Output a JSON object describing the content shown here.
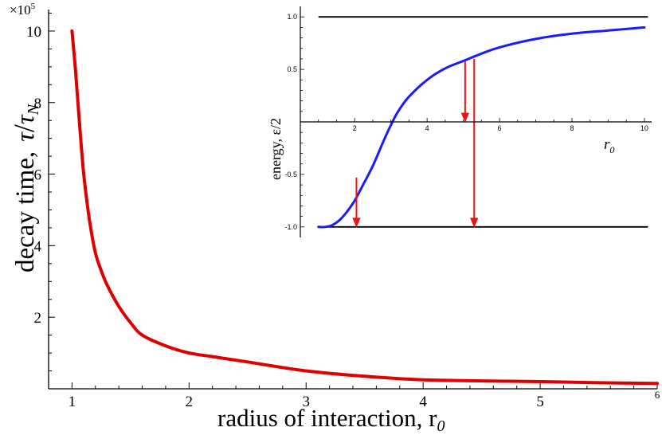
{
  "chart_data": [
    {
      "type": "line",
      "title": "",
      "xlabel": "radius of interaction, r",
      "xlabel_sub": "0",
      "ylabel": "decay time,",
      "ylabel_tau": "τ",
      "ylabel_slash": "/",
      "ylabel_tauN": "τ",
      "ylabel_tauN_sub": "N",
      "y_multiplier": "×10",
      "y_multiplier_exp": "5",
      "xlim": [
        0.8,
        6
      ],
      "ylim": [
        0,
        10.6
      ],
      "x_ticks": [
        1,
        2,
        3,
        4,
        5,
        6
      ],
      "x_tick_labels": [
        "1",
        "2",
        "3",
        "4",
        "5",
        "6"
      ],
      "y_ticks": [
        2,
        4,
        6,
        8,
        10
      ],
      "y_tick_labels": [
        "2",
        "4",
        "6",
        "8",
        "10"
      ],
      "color": "#dd0000",
      "series": [
        {
          "x": [
            1.0,
            1.03,
            1.06,
            1.1,
            1.15,
            1.2,
            1.25,
            1.3,
            1.4,
            1.5,
            1.6,
            1.8,
            2.0,
            2.2,
            2.5,
            3.0,
            3.5,
            4.0,
            4.5,
            5.0,
            5.5,
            6.0
          ],
          "y": [
            10.0,
            8.9,
            7.6,
            6.0,
            4.7,
            3.8,
            3.3,
            2.9,
            2.3,
            1.85,
            1.5,
            1.2,
            1.0,
            0.9,
            0.75,
            0.5,
            0.35,
            0.25,
            0.22,
            0.2,
            0.17,
            0.15
          ]
        }
      ]
    },
    {
      "type": "line",
      "title": "",
      "xlabel": "r",
      "xlabel_sub": "0",
      "ylabel": "energy, ε/2",
      "xlim": [
        0.5,
        10.2
      ],
      "ylim": [
        -1.1,
        1.1
      ],
      "x_ticks": [
        2,
        4,
        6,
        8,
        10
      ],
      "x_tick_labels": [
        "2",
        "4",
        "6",
        "8",
        "10"
      ],
      "y_ticks": [
        -1.0,
        -0.5,
        0.5,
        1.0
      ],
      "y_tick_labels": [
        "-1.0",
        "-0.5",
        "0.5",
        "1.0"
      ],
      "reference_lines": [
        1.0,
        -1.0
      ],
      "curve_color": "#1a1aff",
      "arrow_color": "#ee1111",
      "series": [
        {
          "x": [
            1.0,
            1.2,
            1.4,
            1.6,
            1.8,
            2.0,
            2.2,
            2.5,
            2.8,
            3.0,
            3.2,
            3.5,
            4.0,
            4.5,
            5.0,
            5.5,
            6.0,
            7.0,
            8.0,
            9.0,
            10.0
          ],
          "y": [
            -1.0,
            -1.0,
            -0.98,
            -0.93,
            -0.85,
            -0.75,
            -0.62,
            -0.42,
            -0.18,
            -0.03,
            0.1,
            0.24,
            0.4,
            0.51,
            0.58,
            0.65,
            0.71,
            0.79,
            0.84,
            0.87,
            0.9
          ]
        }
      ],
      "arrows": [
        {
          "x": 2.05,
          "y_from": -0.53,
          "y_to": -1.0
        },
        {
          "x": 5.05,
          "y_from": 0.58,
          "y_to": 0.0
        },
        {
          "x": 5.3,
          "y_from": 0.6,
          "y_to": -1.0
        }
      ]
    }
  ]
}
